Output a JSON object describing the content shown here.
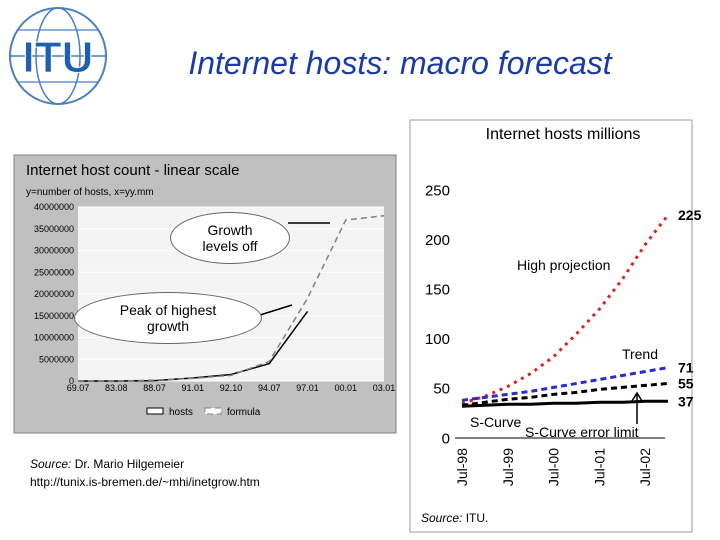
{
  "slide_title": "Internet hosts: macro forecast",
  "logo_text": "ITU",
  "chart_data": [
    {
      "type": "line",
      "title": "Internet host count - linear scale",
      "subtitle": "y=number of hosts, x=yy.mm",
      "categories": [
        "69.07",
        "83.08",
        "88.07",
        "91.01",
        "92.10",
        "94.07",
        "97.01",
        "00.01",
        "03.01"
      ],
      "series": [
        {
          "name": "hosts",
          "color": "#000000",
          "style": "solid",
          "values": [
            0,
            0,
            100000,
            700000,
            1500000,
            4000000,
            16000000,
            null,
            null
          ]
        },
        {
          "name": "formula",
          "color": "#808080",
          "style": "dashed",
          "values": [
            0,
            0,
            200000,
            600000,
            1300000,
            4500000,
            19000000,
            37000000,
            38000000
          ]
        }
      ],
      "ylim": [
        0,
        40000000
      ],
      "yticks": [
        0,
        5000000,
        10000000,
        15000000,
        20000000,
        25000000,
        30000000,
        35000000,
        40000000
      ],
      "grid": true,
      "annotations": [
        "Growth levels off",
        "Peak of highest growth"
      ],
      "source_label": "Source:",
      "source": "Dr. Mario Hilgemeier",
      "source_url": "http://tunix.is-bremen.de/~mhi/inetgrow.htm"
    },
    {
      "type": "line",
      "title": "Internet hosts millions",
      "categories": [
        "Jul-98",
        null,
        "Jul-99",
        null,
        "Jul-00",
        null,
        "Jul-01",
        null,
        "Jul-02",
        null
      ],
      "series": [
        {
          "name": "High projection",
          "color": "#e02020",
          "style": "dotted",
          "values": [
            35,
            42,
            52,
            65,
            82,
            105,
            130,
            160,
            195,
            225
          ]
        },
        {
          "name": "Trend",
          "color": "#2a2ad0",
          "style": "dashed",
          "values": [
            38,
            41,
            44,
            47,
            51,
            55,
            59,
            63,
            67,
            71
          ]
        },
        {
          "name": "S-Curve error limit",
          "color": "#000000",
          "style": "dashed",
          "values": [
            33,
            36,
            39,
            41,
            44,
            46,
            49,
            51,
            53,
            55
          ]
        },
        {
          "name": "S-Curve",
          "color": "#000000",
          "style": "solid",
          "values": [
            32,
            33,
            34,
            34,
            35,
            35,
            36,
            36,
            37,
            37
          ]
        }
      ],
      "ylim": [
        0,
        250
      ],
      "yticks": [
        0,
        50,
        100,
        150,
        200,
        250
      ],
      "end_labels": true,
      "source_label": "Source:",
      "source": "ITU."
    }
  ]
}
